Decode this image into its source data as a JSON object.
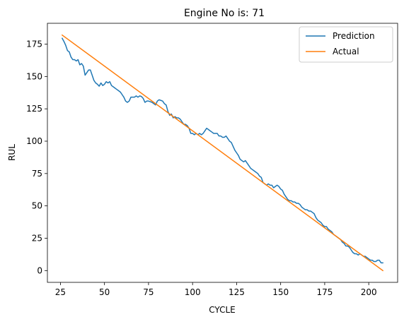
{
  "chart_data": {
    "type": "line",
    "title": "Engine No is: 71",
    "xlabel": "CYCLE",
    "ylabel": "RUL",
    "xlim": [
      17.6,
      216.4
    ],
    "ylim": [
      -9.1,
      191.1
    ],
    "x_ticks": [
      25,
      50,
      75,
      100,
      125,
      150,
      175,
      200
    ],
    "y_ticks": [
      0,
      25,
      50,
      75,
      100,
      125,
      150,
      175
    ],
    "grid": false,
    "legend_position": "top-right",
    "series": [
      {
        "name": "Prediction",
        "color": "#1f77b4",
        "points": [
          [
            26,
            179.5
          ],
          [
            27,
            177
          ],
          [
            28,
            174
          ],
          [
            29,
            170
          ],
          [
            30,
            169
          ],
          [
            31,
            165
          ],
          [
            32,
            163
          ],
          [
            33,
            163
          ],
          [
            34,
            162
          ],
          [
            35,
            163
          ],
          [
            36,
            159
          ],
          [
            37,
            160
          ],
          [
            38,
            158
          ],
          [
            39,
            151
          ],
          [
            40,
            153
          ],
          [
            41,
            155
          ],
          [
            42,
            155
          ],
          [
            43,
            151
          ],
          [
            44,
            147
          ],
          [
            45,
            145
          ],
          [
            46,
            144
          ],
          [
            47,
            142.5
          ],
          [
            48,
            145
          ],
          [
            49,
            143
          ],
          [
            50,
            144
          ],
          [
            51,
            146
          ],
          [
            52,
            145
          ],
          [
            53,
            146
          ],
          [
            54,
            143
          ],
          [
            55,
            142
          ],
          [
            56,
            141
          ],
          [
            57,
            140
          ],
          [
            58,
            139
          ],
          [
            59,
            138
          ],
          [
            60,
            136
          ],
          [
            61,
            134
          ],
          [
            62,
            131
          ],
          [
            63,
            130
          ],
          [
            64,
            131
          ],
          [
            65,
            134
          ],
          [
            66,
            134
          ],
          [
            67,
            134
          ],
          [
            68,
            135
          ],
          [
            69,
            134
          ],
          [
            70,
            135
          ],
          [
            71,
            134.5
          ],
          [
            72,
            133
          ],
          [
            73,
            130
          ],
          [
            74,
            131
          ],
          [
            75,
            131
          ],
          [
            76,
            130.5
          ],
          [
            77,
            130
          ],
          [
            78,
            129
          ],
          [
            79,
            128
          ],
          [
            80,
            131
          ],
          [
            81,
            132
          ],
          [
            82,
            131.5
          ],
          [
            83,
            131
          ],
          [
            84,
            129
          ],
          [
            85,
            128
          ],
          [
            86,
            123
          ],
          [
            87,
            120
          ],
          [
            88,
            121
          ],
          [
            89,
            118
          ],
          [
            90,
            119
          ],
          [
            91,
            118
          ],
          [
            92,
            118
          ],
          [
            93,
            117
          ],
          [
            94,
            115
          ],
          [
            95,
            113
          ],
          [
            96,
            113
          ],
          [
            97,
            112
          ],
          [
            98,
            110
          ],
          [
            99,
            106
          ],
          [
            100,
            106
          ],
          [
            101,
            105
          ],
          [
            102,
            106
          ],
          [
            103,
            105
          ],
          [
            104,
            106
          ],
          [
            105,
            105
          ],
          [
            106,
            106
          ],
          [
            107,
            108
          ],
          [
            108,
            110
          ],
          [
            109,
            109
          ],
          [
            110,
            108
          ],
          [
            111,
            107
          ],
          [
            112,
            106
          ],
          [
            113,
            106
          ],
          [
            114,
            106
          ],
          [
            115,
            104
          ],
          [
            116,
            104
          ],
          [
            117,
            103
          ],
          [
            118,
            103
          ],
          [
            119,
            104
          ],
          [
            120,
            102
          ],
          [
            121,
            100
          ],
          [
            122,
            99
          ],
          [
            123,
            96
          ],
          [
            124,
            93
          ],
          [
            125,
            91
          ],
          [
            126,
            89
          ],
          [
            127,
            86
          ],
          [
            128,
            85
          ],
          [
            129,
            84
          ],
          [
            130,
            85
          ],
          [
            131,
            83
          ],
          [
            132,
            81
          ],
          [
            133,
            79
          ],
          [
            134,
            78
          ],
          [
            135,
            77
          ],
          [
            136,
            76
          ],
          [
            137,
            75
          ],
          [
            138,
            73
          ],
          [
            139,
            72
          ],
          [
            140,
            68
          ],
          [
            141,
            67
          ],
          [
            142,
            66
          ],
          [
            143,
            67
          ],
          [
            144,
            66
          ],
          [
            145,
            66
          ],
          [
            146,
            64
          ],
          [
            147,
            65
          ],
          [
            148,
            66
          ],
          [
            149,
            65
          ],
          [
            150,
            63
          ],
          [
            151,
            62
          ],
          [
            152,
            59
          ],
          [
            153,
            57
          ],
          [
            154,
            55
          ],
          [
            155,
            54
          ],
          [
            156,
            54
          ],
          [
            157,
            53
          ],
          [
            158,
            53
          ],
          [
            159,
            52
          ],
          [
            160,
            52
          ],
          [
            161,
            51
          ],
          [
            162,
            49
          ],
          [
            163,
            48
          ],
          [
            164,
            47
          ],
          [
            165,
            47
          ],
          [
            166,
            46
          ],
          [
            167,
            46
          ],
          [
            168,
            45
          ],
          [
            169,
            44
          ],
          [
            170,
            41
          ],
          [
            171,
            39
          ],
          [
            172,
            38
          ],
          [
            173,
            37
          ],
          [
            174,
            35
          ],
          [
            175,
            34
          ],
          [
            176,
            34
          ],
          [
            177,
            32
          ],
          [
            178,
            31
          ],
          [
            179,
            30
          ],
          [
            180,
            28
          ],
          [
            181,
            27
          ],
          [
            182,
            26
          ],
          [
            183,
            25
          ],
          [
            184,
            24
          ],
          [
            185,
            22
          ],
          [
            186,
            21
          ],
          [
            187,
            19
          ],
          [
            188,
            19
          ],
          [
            189,
            18
          ],
          [
            190,
            16
          ],
          [
            191,
            14
          ],
          [
            192,
            13
          ],
          [
            193,
            13
          ],
          [
            194,
            12
          ],
          [
            195,
            13
          ],
          [
            196,
            12
          ],
          [
            197,
            11
          ],
          [
            198,
            11
          ],
          [
            199,
            10
          ],
          [
            200,
            9
          ],
          [
            201,
            8
          ],
          [
            202,
            8
          ],
          [
            203,
            7
          ],
          [
            204,
            7
          ],
          [
            205,
            8
          ],
          [
            206,
            8
          ],
          [
            207,
            6
          ],
          [
            208,
            6
          ]
        ]
      },
      {
        "name": "Actual",
        "color": "#ff7f0e",
        "points": [
          [
            26,
            182
          ],
          [
            208,
            0
          ]
        ]
      }
    ]
  }
}
